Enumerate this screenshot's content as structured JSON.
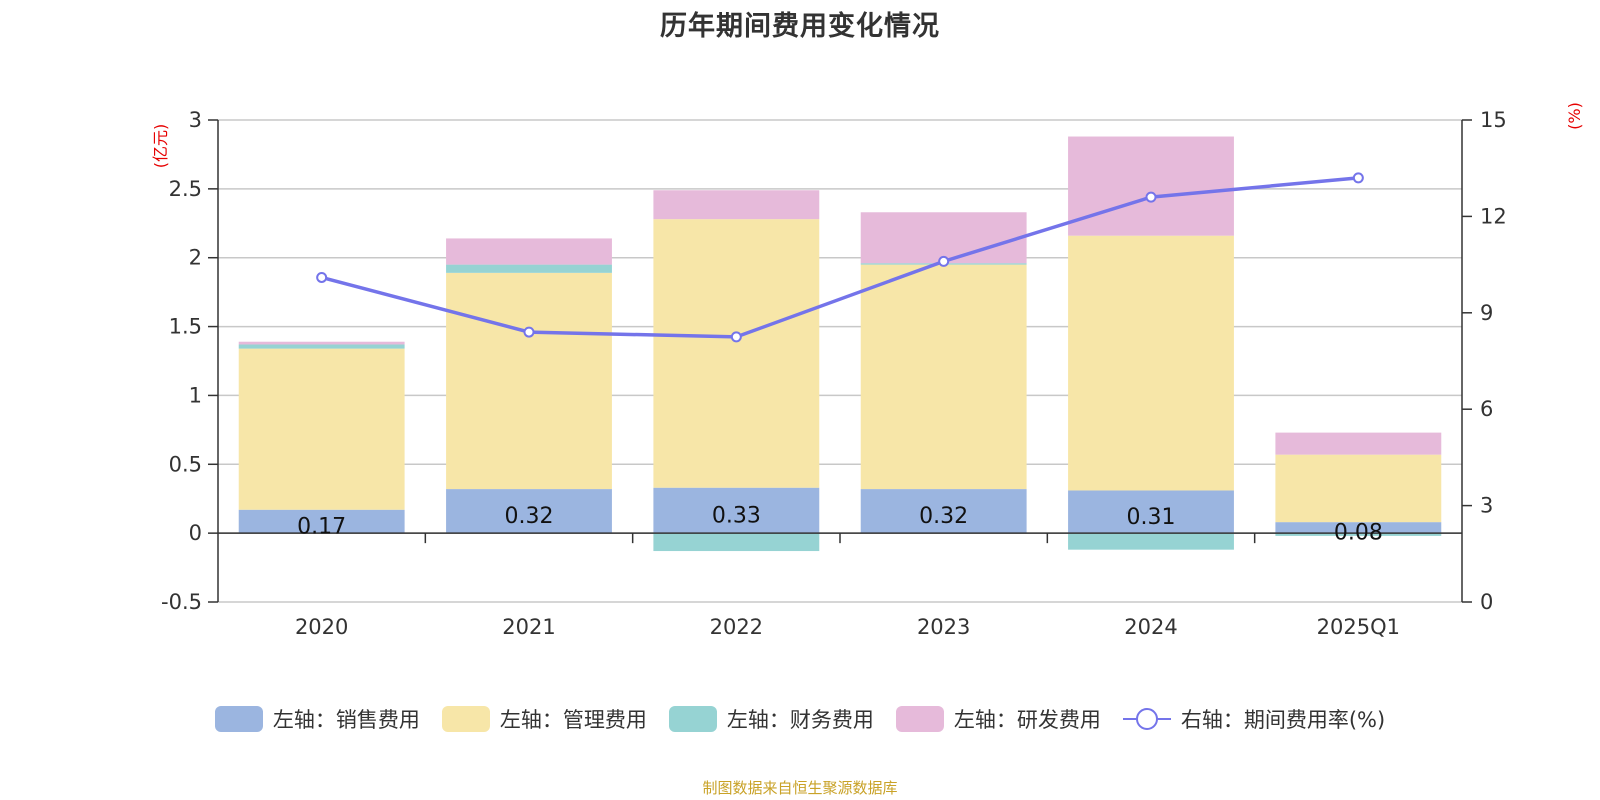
{
  "title": "历年期间费用变化情况",
  "source_note": "制图数据来自恒生聚源数据库",
  "legend": [
    {
      "label": "左轴：销售费用",
      "color": "#9bb5e0",
      "kind": "bar"
    },
    {
      "label": "左轴：管理费用",
      "color": "#f7e6a8",
      "kind": "bar"
    },
    {
      "label": "左轴：财务费用",
      "color": "#96d3d3",
      "kind": "bar"
    },
    {
      "label": "左轴：研发费用",
      "color": "#e6bada",
      "kind": "bar"
    },
    {
      "label": "右轴：期间费用率(%)",
      "color": "#7474ea",
      "kind": "line"
    }
  ],
  "chart_data": {
    "type": "bar",
    "stacked": true,
    "categories": [
      "2020",
      "2021",
      "2022",
      "2023",
      "2024",
      "2025Q1"
    ],
    "left_axis": {
      "unit": "(亿元)",
      "ylim": [
        -0.5,
        3
      ],
      "ticks": [
        -0.5,
        0,
        0.5,
        1,
        1.5,
        2,
        2.5,
        3
      ]
    },
    "right_axis": {
      "unit": "(%)",
      "ylim": [
        0,
        15
      ],
      "ticks": [
        0,
        3,
        6,
        9,
        12,
        15
      ]
    },
    "series": [
      {
        "name": "左轴：销售费用",
        "axis": "left",
        "color": "#9bb5e0",
        "values": [
          0.17,
          0.32,
          0.33,
          0.32,
          0.31,
          0.08
        ],
        "labels": [
          "0.17",
          "0.32",
          "0.33",
          "0.32",
          "0.31",
          "0.08"
        ]
      },
      {
        "name": "左轴：管理费用",
        "axis": "left",
        "color": "#f7e6a8",
        "values": [
          1.17,
          1.57,
          1.95,
          1.63,
          1.85,
          0.49
        ]
      },
      {
        "name": "左轴：财务费用",
        "axis": "left",
        "color": "#96d3d3",
        "values": [
          0.03,
          0.06,
          -0.13,
          0.01,
          -0.12,
          -0.02
        ]
      },
      {
        "name": "左轴：研发费用",
        "axis": "left",
        "color": "#e6bada",
        "values": [
          0.02,
          0.19,
          0.21,
          0.37,
          0.72,
          0.16
        ]
      },
      {
        "name": "右轴：期间费用率(%)",
        "axis": "right",
        "type": "line",
        "color": "#7474ea",
        "values": [
          10.1,
          8.4,
          8.25,
          10.6,
          12.6,
          13.2
        ]
      }
    ],
    "grid": true,
    "legend_position": "bottom"
  }
}
